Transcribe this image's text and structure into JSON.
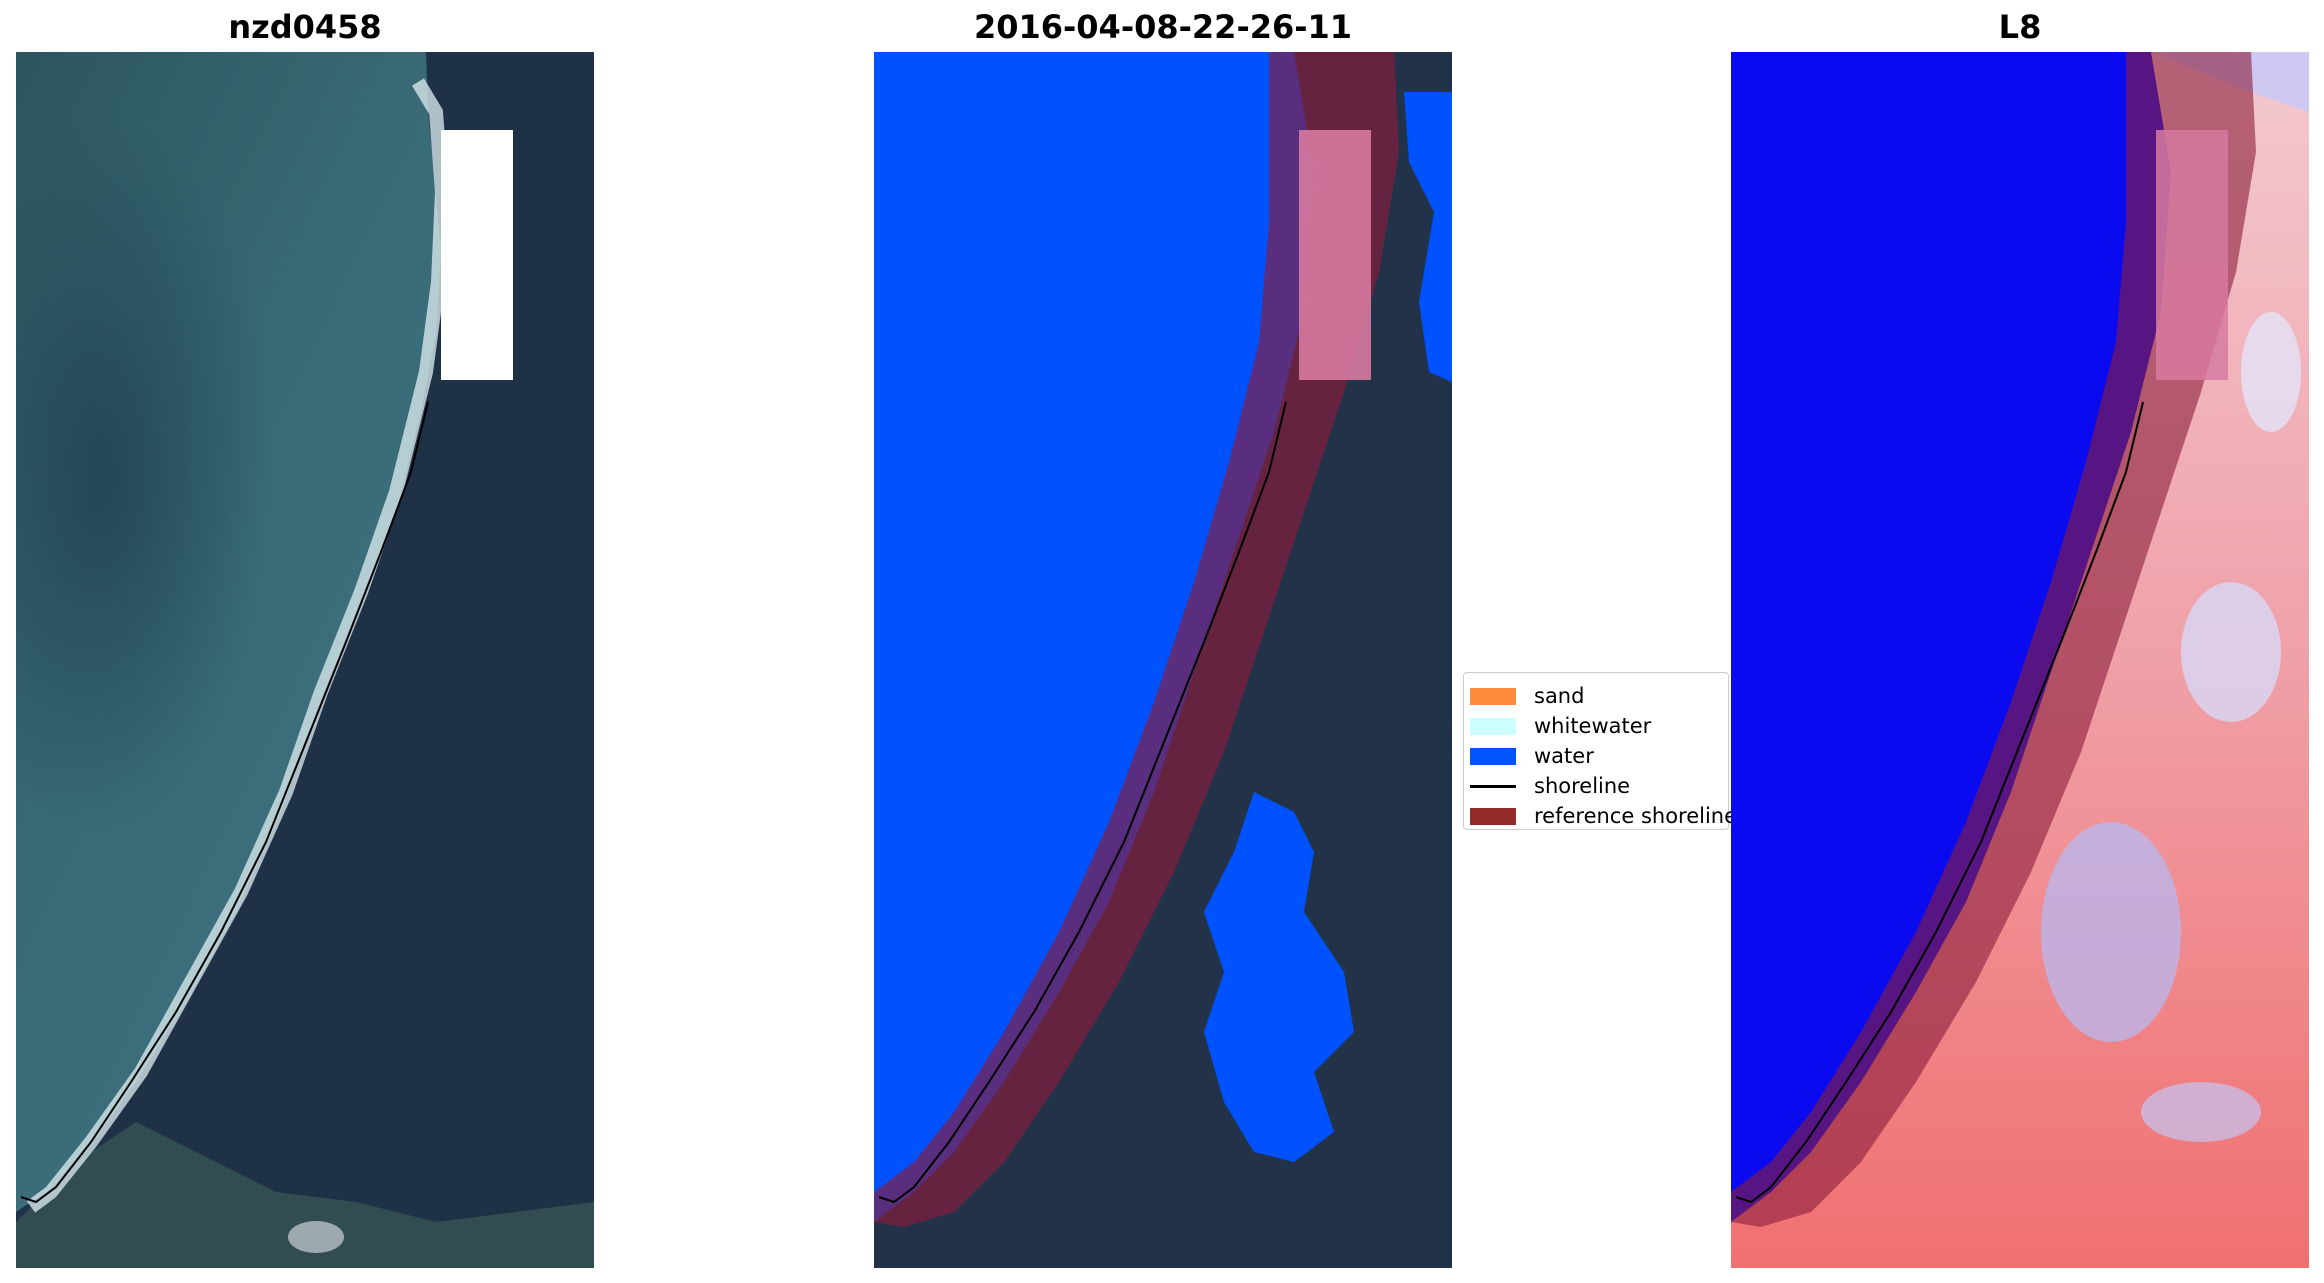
{
  "panels": [
    {
      "title": "nzd0458"
    },
    {
      "title": "2016-04-08-22-26-11"
    },
    {
      "title": "L8"
    }
  ],
  "legend": {
    "items": [
      {
        "label": "sand",
        "color": "#ff8c3a",
        "kind": "patch"
      },
      {
        "label": "whitewater",
        "color": "#ccffff",
        "kind": "patch"
      },
      {
        "label": "water",
        "color": "#0055ff",
        "kind": "patch"
      },
      {
        "label": "shoreline",
        "color": "#000000",
        "kind": "line"
      },
      {
        "label": "reference shoreline",
        "color": "#932b2b",
        "kind": "patch"
      }
    ]
  },
  "colors": {
    "sea": "#35606b",
    "land": "#1f3045",
    "water_class": "#0052ff",
    "reference_buffer": "#8a1c3a",
    "index_low": "#0000ff",
    "index_high": "#ff2020"
  }
}
